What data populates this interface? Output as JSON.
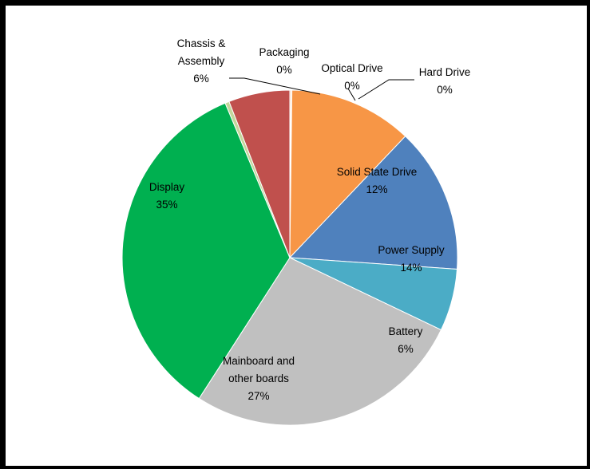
{
  "chart_data": {
    "type": "pie",
    "title": "",
    "start_angle_deg": 0,
    "direction": "clockwise",
    "legend": "none",
    "slices": [
      {
        "label": [
          "Optical Drive"
        ],
        "value": 0.1,
        "display": "0%",
        "color": "#f79646"
      },
      {
        "label": [
          "Hard Drive"
        ],
        "value": 0.1,
        "display": "0%",
        "color": "#f79646"
      },
      {
        "label": [
          "Solid State Drive"
        ],
        "value": 11.9,
        "display": "12%",
        "color": "#f79646"
      },
      {
        "label": [
          "Power Supply"
        ],
        "value": 14,
        "display": "14%",
        "color": "#4f81bd"
      },
      {
        "label": [
          "Battery"
        ],
        "value": 6,
        "display": "6%",
        "color": "#4bacc6"
      },
      {
        "label": [
          "Mainboard and",
          "other boards"
        ],
        "value": 27,
        "display": "27%",
        "color": "#c0c0c0"
      },
      {
        "label": [
          "Display"
        ],
        "value": 34.6,
        "display": "35%",
        "color": "#00b050"
      },
      {
        "label": [
          "Packaging"
        ],
        "value": 0.4,
        "display": "0%",
        "color": "#c3d69b"
      },
      {
        "label": [
          "Chassis &",
          "Assembly"
        ],
        "value": 5.9,
        "display": "6%",
        "color": "#c0504d"
      }
    ]
  }
}
